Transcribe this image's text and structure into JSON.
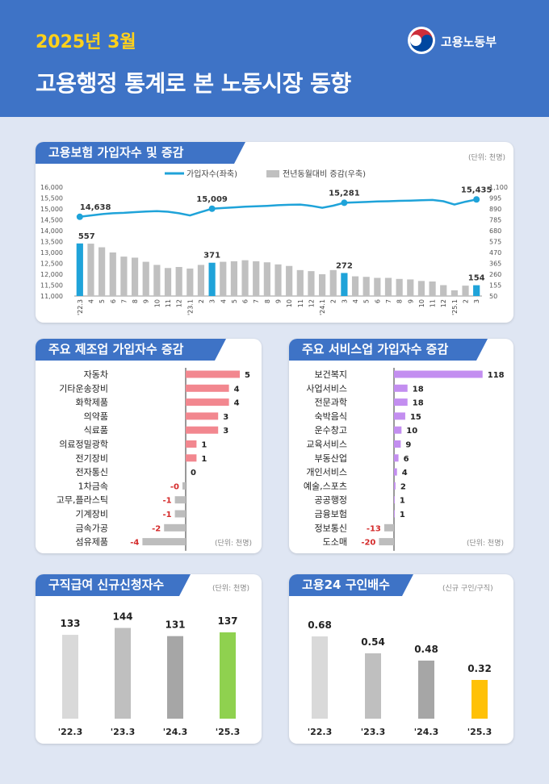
{
  "header": {
    "month": "2025년 3월",
    "title": "고용행정 통계로 본 노동시장 동향",
    "ministry": "고용노동부"
  },
  "colors": {
    "header_bg": "#3e73c6",
    "accent_yellow": "#ffd11a",
    "line": "#1fa3d9",
    "bar_gray": "#c0c0c0",
    "bar_highlight": "#1fa3d9",
    "manuf_bar": "#f2878f",
    "service_bar": "#c38ef0",
    "negative_bar": "#bdbdbd",
    "negative_text": "#d42a2a",
    "green": "#8fd14f",
    "yellow": "#ffc107"
  },
  "panels": {
    "insurance": {
      "title": "고용보험 가입자수 및 증감",
      "unit": "(단위: 천명)"
    },
    "manufacturing": {
      "title": "주요 제조업 가입자수 증감",
      "unit": "(단위: 천명)"
    },
    "services": {
      "title": "주요 서비스업 가입자수 증감",
      "unit": "(단위: 천명)"
    },
    "jobseekers": {
      "title": "구직급여 신규신청자수",
      "unit": "(단위: 천명)"
    },
    "job24": {
      "title": "고용24 구인배수",
      "unit": "(신규 구인/구직)"
    }
  },
  "chart_data": [
    {
      "type": "line+bar",
      "legend": [
        "가입자수(좌축)",
        "전년동월대비 증감(우축)"
      ],
      "legend_position": "top-center",
      "categories": [
        "'22.3",
        "4",
        "5",
        "6",
        "7",
        "8",
        "9",
        "10",
        "11",
        "12",
        "'23.1",
        "2",
        "3",
        "4",
        "5",
        "6",
        "7",
        "8",
        "9",
        "10",
        "11",
        "12",
        "'24.1",
        "2",
        "3",
        "4",
        "5",
        "6",
        "7",
        "8",
        "9",
        "10",
        "11",
        "12",
        "'25.1",
        "2",
        "3"
      ],
      "left_axis": {
        "ylim": [
          11000,
          16000
        ],
        "ticks": [
          "16,000",
          "15,500",
          "15,000",
          "14,500",
          "14,000",
          "13,500",
          "13,000",
          "12,500",
          "12,000",
          "11,500",
          "11,000"
        ]
      },
      "right_axis": {
        "ylim": [
          50,
          1100
        ],
        "ticks": [
          "1,100",
          "995",
          "890",
          "785",
          "680",
          "575",
          "470",
          "365",
          "260",
          "155",
          "50"
        ]
      },
      "series": [
        {
          "name": "가입자수(좌축)",
          "type": "line",
          "values": [
            14638,
            14700,
            14760,
            14800,
            14820,
            14850,
            14880,
            14900,
            14870,
            14800,
            14700,
            14860,
            15009,
            15040,
            15070,
            15100,
            15120,
            15140,
            15170,
            15190,
            15200,
            15140,
            15050,
            15150,
            15281,
            15300,
            15320,
            15340,
            15350,
            15370,
            15380,
            15400,
            15410,
            15350,
            15200,
            15330,
            15435
          ]
        },
        {
          "name": "전년동월대비 증감(우축)",
          "type": "bar",
          "values": [
            557,
            555,
            520,
            470,
            430,
            420,
            380,
            350,
            320,
            330,
            315,
            350,
            371,
            380,
            385,
            395,
            385,
            375,
            355,
            340,
            300,
            290,
            260,
            300,
            272,
            240,
            235,
            225,
            225,
            215,
            210,
            195,
            190,
            155,
            105,
            150,
            154
          ]
        }
      ],
      "highlight_indices": [
        0,
        12,
        24,
        36
      ],
      "labels": {
        "line": [
          "14,638",
          "15,009",
          "15,281",
          "15,435"
        ],
        "bar": [
          "557",
          "371",
          "272",
          "154"
        ]
      }
    },
    {
      "type": "bar",
      "orientation": "horizontal",
      "categories": [
        "자동차",
        "기타운송장비",
        "화학제품",
        "의약품",
        "식료품",
        "의료정밀광학",
        "전기장비",
        "전자통신",
        "1차금속",
        "고무,플라스틱",
        "기계장비",
        "금속가공",
        "섬유제품"
      ],
      "values": [
        5,
        4,
        4,
        3,
        3,
        1,
        1,
        0,
        -0.3,
        -1,
        -1,
        -2,
        -4
      ],
      "value_labels": [
        "5",
        "4",
        "4",
        "3",
        "3",
        "1",
        "1",
        "0",
        "-0",
        "-1",
        "-1",
        "-2",
        "-4"
      ]
    },
    {
      "type": "bar",
      "orientation": "horizontal",
      "categories": [
        "보건복지",
        "사업서비스",
        "전문과학",
        "숙박음식",
        "운수창고",
        "교육서비스",
        "부동산업",
        "개인서비스",
        "예술,스포츠",
        "공공행정",
        "금융보험",
        "정보통신",
        "도소매"
      ],
      "values": [
        118,
        18,
        18,
        15,
        10,
        9,
        6,
        4,
        2,
        1,
        1,
        -13,
        -20
      ],
      "value_labels": [
        "118",
        "18",
        "18",
        "15",
        "10",
        "9",
        "6",
        "4",
        "2",
        "1",
        "1",
        "-13",
        "-20"
      ]
    },
    {
      "type": "bar",
      "categories": [
        "'22.3",
        "'23.3",
        "'24.3",
        "'25.3"
      ],
      "values": [
        133,
        144,
        131,
        137
      ],
      "value_labels": [
        "133",
        "144",
        "131",
        "137"
      ],
      "colors": [
        "#d9d9d9",
        "#bfbfbf",
        "#a6a6a6",
        "#8fd14f"
      ]
    },
    {
      "type": "bar",
      "categories": [
        "'22.3",
        "'23.3",
        "'24.3",
        "'25.3"
      ],
      "values": [
        0.68,
        0.54,
        0.48,
        0.32
      ],
      "value_labels": [
        "0.68",
        "0.54",
        "0.48",
        "0.32"
      ],
      "colors": [
        "#d9d9d9",
        "#bfbfbf",
        "#a6a6a6",
        "#ffc107"
      ]
    }
  ]
}
